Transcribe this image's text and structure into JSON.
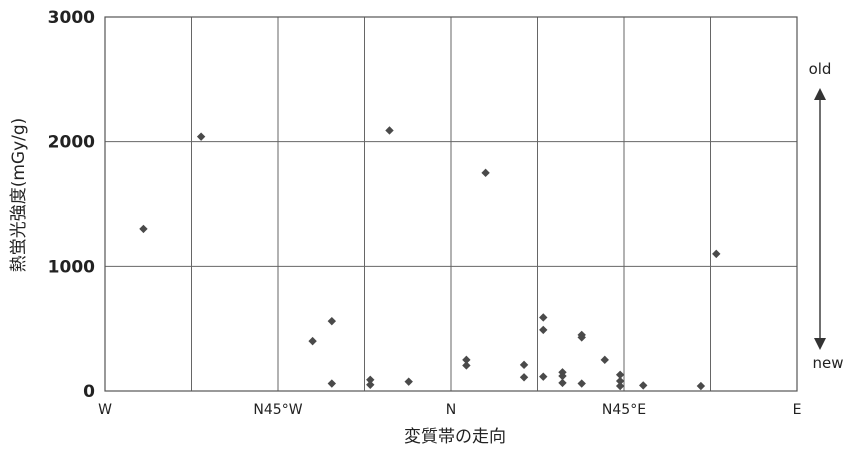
{
  "chart_data": {
    "type": "scatter",
    "xlabel": "変質帯の走向",
    "ylabel": "熱蛍光強度(mGy/g)",
    "xlim": [
      -90,
      90
    ],
    "ylim": [
      0,
      3000
    ],
    "x_ticks": [
      -90,
      -45,
      0,
      45,
      90
    ],
    "x_tick_labels": [
      "W",
      "N45°W",
      "N",
      "N45°E",
      "E"
    ],
    "x_gridlines": [
      -67.5,
      -45,
      -22.5,
      0,
      22.5,
      45,
      67.5
    ],
    "y_ticks": [
      0,
      1000,
      2000,
      3000
    ],
    "y_tick_labels": [
      "0",
      "1000",
      "2000",
      "3000"
    ],
    "grid": true,
    "annotation": {
      "top_label": "old",
      "bottom_label": "new"
    },
    "series": [
      {
        "marker": "diamond",
        "color": "#4a4a4a",
        "points": [
          {
            "x": -80,
            "y": 1300
          },
          {
            "x": -65,
            "y": 2040
          },
          {
            "x": -36,
            "y": 400
          },
          {
            "x": -31,
            "y": 560
          },
          {
            "x": -31,
            "y": 60
          },
          {
            "x": -21,
            "y": 90
          },
          {
            "x": -21,
            "y": 50
          },
          {
            "x": -16,
            "y": 2090
          },
          {
            "x": -11,
            "y": 75
          },
          {
            "x": 4,
            "y": 250
          },
          {
            "x": 4,
            "y": 205
          },
          {
            "x": 9,
            "y": 1750
          },
          {
            "x": 19,
            "y": 210
          },
          {
            "x": 19,
            "y": 110
          },
          {
            "x": 24,
            "y": 590
          },
          {
            "x": 24,
            "y": 490
          },
          {
            "x": 24,
            "y": 115
          },
          {
            "x": 29,
            "y": 150
          },
          {
            "x": 29,
            "y": 120
          },
          {
            "x": 29,
            "y": 65
          },
          {
            "x": 34,
            "y": 450
          },
          {
            "x": 34,
            "y": 430
          },
          {
            "x": 34,
            "y": 60
          },
          {
            "x": 40,
            "y": 250
          },
          {
            "x": 44,
            "y": 130
          },
          {
            "x": 44,
            "y": 80
          },
          {
            "x": 44,
            "y": 40
          },
          {
            "x": 50,
            "y": 45
          },
          {
            "x": 65,
            "y": 40
          },
          {
            "x": 69,
            "y": 1100
          }
        ]
      }
    ]
  }
}
